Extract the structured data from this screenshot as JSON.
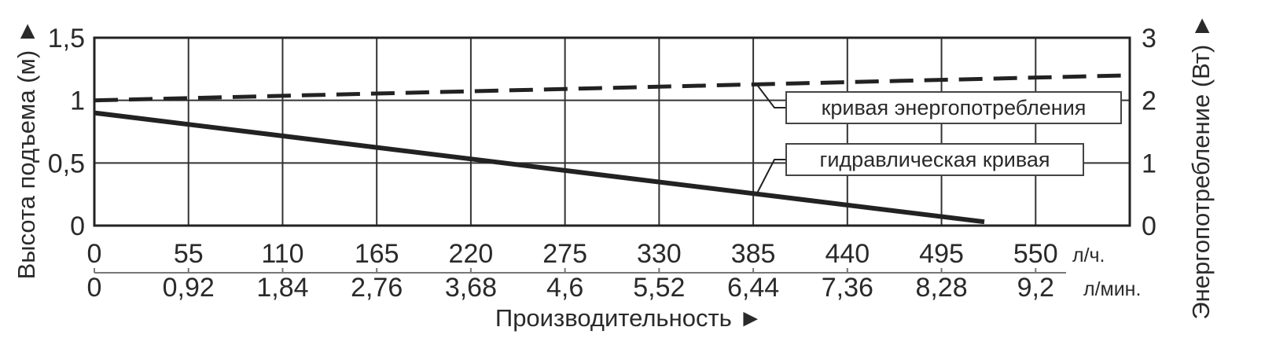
{
  "chart_data": {
    "type": "line",
    "title": "",
    "xlabel": "Производительность ►",
    "ylabel_left": "Высота подъема (м) ►",
    "ylabel_right": "Энергопотребление (Вт) ►",
    "xlim": [
      0,
      605
    ],
    "ylim_left": [
      0,
      1.5
    ],
    "ylim_right": [
      0,
      3
    ],
    "grid": true,
    "x_ticks_lph": [
      "0",
      "55",
      "110",
      "165",
      "220",
      "275",
      "330",
      "385",
      "440",
      "495",
      "550"
    ],
    "x_unit_lph": "л/ч.",
    "x_ticks_lpm": [
      "0",
      "0,92",
      "1,84",
      "2,76",
      "3,68",
      "4,6",
      "5,52",
      "6,44",
      "7,36",
      "8,28",
      "9,2"
    ],
    "x_unit_lpm": "л/мин.",
    "y_ticks_left": [
      "0",
      "0,5",
      "1",
      "1,5"
    ],
    "y_ticks_right": [
      "0",
      "1",
      "2",
      "3"
    ],
    "series": [
      {
        "name": "гидравлическая кривая",
        "axis": "left",
        "style": "solid",
        "x": [
          0,
          520
        ],
        "y": [
          0.9,
          0.03
        ]
      },
      {
        "name": "кривая энергопотребления",
        "axis": "right",
        "style": "dashed",
        "x": [
          0,
          605
        ],
        "y": [
          2.0,
          2.4
        ]
      }
    ],
    "annotations": [
      {
        "text": "кривая энергопотребления",
        "series": 1,
        "point_x": 387
      },
      {
        "text": "гидравлическая кривая",
        "series": 0,
        "point_x": 387
      }
    ]
  }
}
